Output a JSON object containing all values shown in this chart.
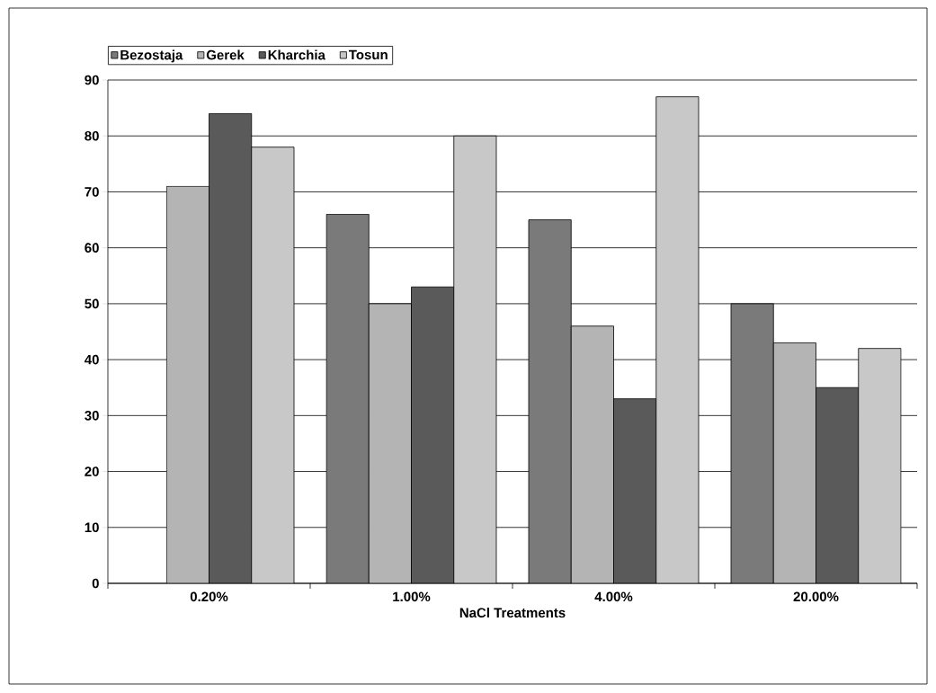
{
  "chart_data": {
    "type": "bar",
    "xlabel": "NaCl Treatments",
    "categories": [
      "0.20%",
      "1.00%",
      "4.00%",
      "20.00%"
    ],
    "series": [
      {
        "name": "Bezostaja",
        "color": "#7a7a7a",
        "values": [
          null,
          66,
          65,
          50
        ]
      },
      {
        "name": "Gerek",
        "color": "#b4b4b4",
        "values": [
          71,
          50,
          46,
          43
        ]
      },
      {
        "name": "Kharchia",
        "color": "#5a5a5a",
        "values": [
          84,
          53,
          33,
          35
        ]
      },
      {
        "name": "Tosun",
        "color": "#c8c8c8",
        "values": [
          78,
          80,
          87,
          42
        ]
      }
    ],
    "ylim": [
      0,
      90
    ],
    "yticks": [
      0,
      10,
      20,
      30,
      40,
      50,
      60,
      70,
      80,
      90
    ],
    "grid": "y",
    "legend": "top left"
  }
}
